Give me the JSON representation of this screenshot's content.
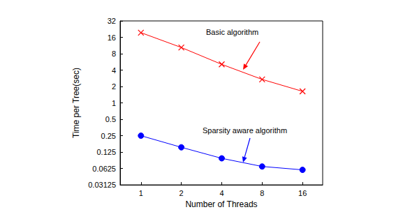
{
  "chart_data": {
    "type": "line",
    "x_label": "Number of Threads",
    "y_label": "Time per Tree(sec)",
    "log": true,
    "grid": false,
    "x": [
      1,
      2,
      4,
      8,
      16
    ],
    "xlim": [
      0.7,
      22.6
    ],
    "xticks": [
      1,
      2,
      4,
      8,
      16
    ],
    "ylim": [
      0.03125,
      32
    ],
    "yticks": [
      0.03125,
      0.0625,
      0.125,
      0.25,
      0.5,
      1,
      2,
      4,
      8,
      16,
      32
    ],
    "series": [
      {
        "name": "Basic algorithm",
        "color": "#ff0000",
        "marker": "x",
        "line_style": "solid",
        "values": [
          19.5,
          10.4,
          5.1,
          2.7,
          1.63
        ]
      },
      {
        "name": "Sparsity aware algorithm",
        "color": "#0000ff",
        "marker": "circle",
        "line_style": "solid",
        "values": [
          0.25,
          0.153,
          0.096,
          0.068,
          0.059
        ]
      }
    ],
    "annotations": [
      {
        "text": "Basic algorithm",
        "color": "#ff0000"
      },
      {
        "text": "Sparsity aware algorithm",
        "color": "#0000ff"
      }
    ]
  }
}
